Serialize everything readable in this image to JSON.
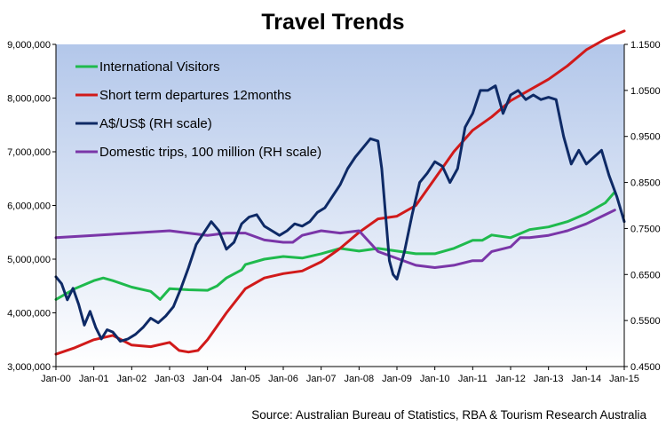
{
  "colors": {
    "plot_top": "#b3c7ea",
    "plot_bottom": "#ffffff",
    "international_visitors": "#1fba4d",
    "short_term_departures": "#d11a1a",
    "aud_usd": "#0e2a66",
    "domestic_trips": "#7a36a8"
  },
  "chart_data": {
    "type": "line",
    "title": "Travel Trends",
    "source": "Source: Australian Bureau of Statistics, RBA & Tourism Research Australia",
    "x_ticks": [
      "Jan-00",
      "Jan-01",
      "Jan-02",
      "Jan-03",
      "Jan-04",
      "Jan-05",
      "Jan-06",
      "Jan-07",
      "Jan-08",
      "Jan-09",
      "Jan-10",
      "Jan-11",
      "Jan-12",
      "Jan-13",
      "Jan-14",
      "Jan-15"
    ],
    "xlim": [
      2000.0,
      2015.0
    ],
    "y_left": {
      "range": [
        3000000,
        9000000
      ],
      "ticks": [
        "3,000,000",
        "4,000,000",
        "5,000,000",
        "6,000,000",
        "7,000,000",
        "8,000,000",
        "9,000,000"
      ]
    },
    "y_right": {
      "range": [
        0.45,
        1.15
      ],
      "ticks": [
        "0.4500",
        "0.5500",
        "0.6500",
        "0.7500",
        "0.8500",
        "0.9500",
        "1.0500",
        "1.1500"
      ]
    },
    "grid": false,
    "legend_position": "top-left",
    "series": [
      {
        "name": "International Visitors",
        "axis": "left",
        "color_key": "international_visitors",
        "x": [
          2000.0,
          2000.5,
          2001.0,
          2001.25,
          2001.5,
          2002.0,
          2002.5,
          2002.75,
          2003.0,
          2003.5,
          2004.0,
          2004.25,
          2004.5,
          2004.9,
          2005.0,
          2005.5,
          2006.0,
          2006.5,
          2007.0,
          2007.5,
          2008.0,
          2008.5,
          2009.0,
          2009.5,
          2010.0,
          2010.5,
          2011.0,
          2011.25,
          2011.5,
          2012.0,
          2012.5,
          2013.0,
          2013.5,
          2014.0,
          2014.5,
          2014.75
        ],
        "values": [
          4250000,
          4450000,
          4600000,
          4650000,
          4600000,
          4480000,
          4400000,
          4250000,
          4450000,
          4430000,
          4420000,
          4500000,
          4650000,
          4800000,
          4900000,
          5000000,
          5050000,
          5020000,
          5100000,
          5200000,
          5150000,
          5200000,
          5150000,
          5100000,
          5100000,
          5200000,
          5350000,
          5350000,
          5450000,
          5400000,
          5550000,
          5600000,
          5700000,
          5850000,
          6050000,
          6250000
        ]
      },
      {
        "name": "Short term departures 12months",
        "axis": "left",
        "color_key": "short_term_departures",
        "x": [
          2000.0,
          2000.5,
          2001.0,
          2001.5,
          2002.0,
          2002.5,
          2003.0,
          2003.25,
          2003.5,
          2003.75,
          2004.0,
          2004.5,
          2005.0,
          2005.5,
          2006.0,
          2006.5,
          2007.0,
          2007.5,
          2008.0,
          2008.5,
          2009.0,
          2009.5,
          2010.0,
          2010.5,
          2011.0,
          2011.5,
          2012.0,
          2012.5,
          2013.0,
          2013.5,
          2014.0,
          2014.5,
          2015.0
        ],
        "values": [
          3230000,
          3350000,
          3500000,
          3580000,
          3400000,
          3370000,
          3450000,
          3300000,
          3270000,
          3300000,
          3500000,
          4000000,
          4450000,
          4650000,
          4730000,
          4780000,
          4950000,
          5200000,
          5500000,
          5750000,
          5800000,
          6000000,
          6500000,
          7000000,
          7400000,
          7650000,
          7950000,
          8150000,
          8350000,
          8600000,
          8900000,
          9100000,
          9250000
        ]
      },
      {
        "name": "A$/US$ (RH scale)",
        "axis": "right",
        "color_key": "aud_usd",
        "x": [
          2000.0,
          2000.15,
          2000.3,
          2000.45,
          2000.6,
          2000.75,
          2000.9,
          2001.05,
          2001.2,
          2001.35,
          2001.5,
          2001.7,
          2001.9,
          2002.1,
          2002.3,
          2002.5,
          2002.7,
          2002.9,
          2003.1,
          2003.3,
          2003.5,
          2003.7,
          2003.9,
          2004.1,
          2004.3,
          2004.5,
          2004.7,
          2004.9,
          2005.1,
          2005.3,
          2005.5,
          2005.7,
          2005.9,
          2006.1,
          2006.3,
          2006.5,
          2006.7,
          2006.9,
          2007.1,
          2007.3,
          2007.5,
          2007.7,
          2007.9,
          2008.1,
          2008.3,
          2008.5,
          2008.6,
          2008.7,
          2008.8,
          2008.9,
          2009.0,
          2009.2,
          2009.4,
          2009.6,
          2009.8,
          2010.0,
          2010.2,
          2010.4,
          2010.6,
          2010.8,
          2011.0,
          2011.2,
          2011.4,
          2011.6,
          2011.8,
          2012.0,
          2012.2,
          2012.4,
          2012.6,
          2012.8,
          2013.0,
          2013.2,
          2013.4,
          2013.6,
          2013.8,
          2014.0,
          2014.2,
          2014.4,
          2014.6,
          2014.8,
          2015.0
        ],
        "values": [
          0.645,
          0.63,
          0.595,
          0.62,
          0.585,
          0.54,
          0.57,
          0.535,
          0.51,
          0.53,
          0.525,
          0.505,
          0.51,
          0.52,
          0.535,
          0.555,
          0.545,
          0.56,
          0.58,
          0.62,
          0.665,
          0.715,
          0.74,
          0.765,
          0.745,
          0.705,
          0.72,
          0.76,
          0.775,
          0.78,
          0.755,
          0.745,
          0.735,
          0.745,
          0.76,
          0.755,
          0.765,
          0.785,
          0.795,
          0.82,
          0.845,
          0.88,
          0.905,
          0.925,
          0.945,
          0.94,
          0.88,
          0.78,
          0.68,
          0.65,
          0.64,
          0.7,
          0.78,
          0.85,
          0.87,
          0.895,
          0.885,
          0.85,
          0.88,
          0.97,
          1.0,
          1.05,
          1.05,
          1.06,
          1.0,
          1.04,
          1.05,
          1.03,
          1.04,
          1.03,
          1.035,
          1.03,
          0.95,
          0.89,
          0.92,
          0.89,
          0.905,
          0.92,
          0.865,
          0.82,
          0.765
        ]
      },
      {
        "name": "Domestic trips, 100 million (RH scale)",
        "axis": "right",
        "color_key": "domestic_trips",
        "x": [
          2000.0,
          2001.0,
          2002.0,
          2003.0,
          2003.5,
          2004.0,
          2004.5,
          2005.0,
          2005.5,
          2006.0,
          2006.25,
          2006.5,
          2007.0,
          2007.5,
          2008.0,
          2008.5,
          2009.0,
          2009.5,
          2010.0,
          2010.5,
          2011.0,
          2011.25,
          2011.5,
          2012.0,
          2012.25,
          2012.5,
          2013.0,
          2013.5,
          2014.0,
          2014.5,
          2014.75
        ],
        "values": [
          0.73,
          0.735,
          0.74,
          0.745,
          0.74,
          0.735,
          0.74,
          0.74,
          0.725,
          0.72,
          0.72,
          0.735,
          0.745,
          0.74,
          0.745,
          0.7,
          0.685,
          0.67,
          0.665,
          0.67,
          0.68,
          0.68,
          0.7,
          0.71,
          0.73,
          0.73,
          0.735,
          0.745,
          0.76,
          0.78,
          0.79
        ]
      }
    ]
  }
}
